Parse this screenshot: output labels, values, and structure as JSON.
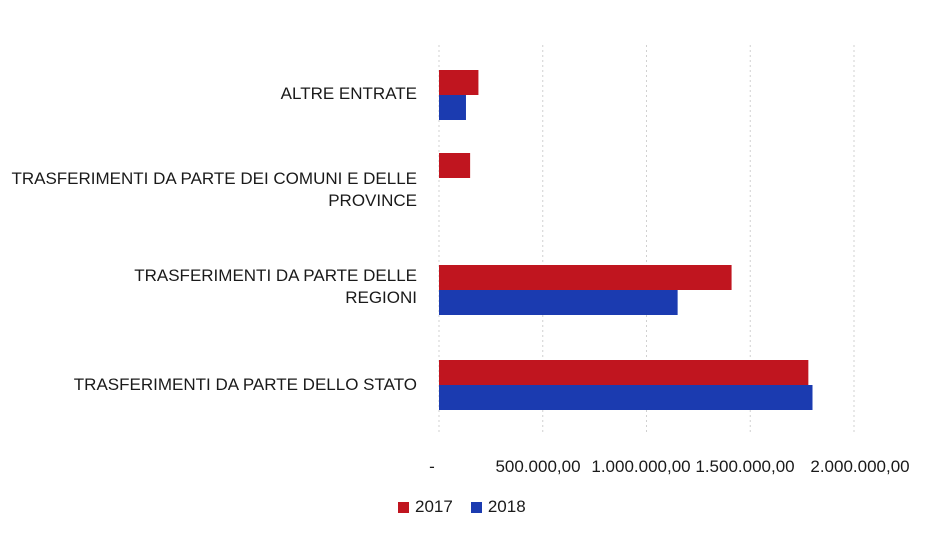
{
  "chart_data": {
    "type": "bar",
    "orientation": "horizontal",
    "categories": [
      "ALTRE ENTRATE",
      "TRASFERIMENTI DA PARTE DEI COMUNI E DELLE PROVINCE",
      "TRASFERIMENTI DA PARTE DELLE REGIONI",
      "TRASFERIMENTI DA PARTE DELLO STATO"
    ],
    "series": [
      {
        "name": "2017",
        "color": "#c0151f",
        "values": [
          190000,
          150000,
          1410000,
          1780000
        ]
      },
      {
        "name": "2018",
        "color": "#1b3bb0",
        "values": [
          130000,
          0,
          1150000,
          1800000
        ]
      }
    ],
    "xlim": [
      0,
      2000000
    ],
    "xticks": [
      0,
      500000,
      1000000,
      1500000,
      2000000
    ],
    "xtick_labels": [
      "-",
      "500.000,00",
      "1.000.000,00",
      "1.500.000,00",
      "2.000.000,00"
    ],
    "grid": "vertical",
    "legend_position": "bottom"
  }
}
